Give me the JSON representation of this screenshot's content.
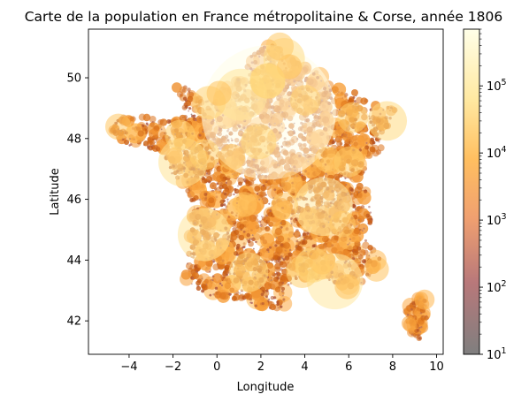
{
  "chart_data": {
    "type": "scatter",
    "title": "Carte de la population en France métropolitaine & Corse, année 1806",
    "xlabel": "Longitude",
    "ylabel": "Latitude",
    "xlim": [
      -5.85,
      10.3
    ],
    "ylim": [
      40.9,
      51.6
    ],
    "xticks": [
      -4,
      -2,
      0,
      2,
      4,
      6,
      8,
      10
    ],
    "yticks": [
      42,
      44,
      46,
      48,
      50
    ],
    "grid": false,
    "colormap": "afmhot",
    "color_scale": "log",
    "colorbar": {
      "range": [
        10,
        700000
      ],
      "ticks": [
        {
          "base": "10",
          "exp": "1",
          "value": 10
        },
        {
          "base": "10",
          "exp": "2",
          "value": 100
        },
        {
          "base": "10",
          "exp": "3",
          "value": 1000
        },
        {
          "base": "10",
          "exp": "4",
          "value": 10000
        },
        {
          "base": "10",
          "exp": "5",
          "value": 100000
        }
      ]
    },
    "highlighted_points": [
      {
        "x": 2.35,
        "y": 48.86,
        "value": 580000
      },
      {
        "x": 4.85,
        "y": 45.76,
        "value": 110000
      },
      {
        "x": 5.37,
        "y": 43.3,
        "value": 100000
      },
      {
        "x": -0.58,
        "y": 44.84,
        "value": 90000
      },
      {
        "x": -1.55,
        "y": 47.22,
        "value": 77000
      },
      {
        "x": 1.1,
        "y": 49.44,
        "value": 87000
      },
      {
        "x": 3.06,
        "y": 50.63,
        "value": 55000
      },
      {
        "x": 7.75,
        "y": 48.58,
        "value": 50000
      },
      {
        "x": 1.44,
        "y": 43.6,
        "value": 50000
      },
      {
        "x": 3.88,
        "y": 43.61,
        "value": 33000
      },
      {
        "x": 2.3,
        "y": 49.9,
        "value": 40000
      },
      {
        "x": 6.18,
        "y": 48.69,
        "value": 30000
      },
      {
        "x": 4.03,
        "y": 49.26,
        "value": 30000
      },
      {
        "x": 1.9,
        "y": 47.9,
        "value": 40000
      },
      {
        "x": 0.69,
        "y": 47.39,
        "value": 22000
      },
      {
        "x": 3.08,
        "y": 45.78,
        "value": 24000
      },
      {
        "x": 5.04,
        "y": 47.32,
        "value": 22000
      },
      {
        "x": -0.36,
        "y": 49.18,
        "value": 36000
      },
      {
        "x": -4.49,
        "y": 48.39,
        "value": 22000
      },
      {
        "x": -1.68,
        "y": 48.11,
        "value": 30000
      },
      {
        "x": 2.86,
        "y": 51.03,
        "value": 25000
      },
      {
        "x": 5.93,
        "y": 43.12,
        "value": 20000
      },
      {
        "x": 7.26,
        "y": 43.7,
        "value": 20000
      },
      {
        "x": 4.36,
        "y": 43.84,
        "value": 40000
      },
      {
        "x": 1.26,
        "y": 45.83,
        "value": 20000
      },
      {
        "x": 6.02,
        "y": 47.24,
        "value": 30000
      },
      {
        "x": 4.8,
        "y": 43.95,
        "value": 21000
      },
      {
        "x": 3.3,
        "y": 50.36,
        "value": 20000
      },
      {
        "x": 2.3,
        "y": 49.89,
        "value": 40000
      },
      {
        "x": 0.1,
        "y": 49.49,
        "value": 20000
      },
      {
        "x": 5.72,
        "y": 45.19,
        "value": 22000
      },
      {
        "x": -0.56,
        "y": 47.47,
        "value": 30000
      },
      {
        "x": 3.4,
        "y": 46.55,
        "value": 15000
      },
      {
        "x": 9.45,
        "y": 42.7,
        "value": 13000
      },
      {
        "x": 8.74,
        "y": 41.92,
        "value": 7000
      }
    ]
  }
}
